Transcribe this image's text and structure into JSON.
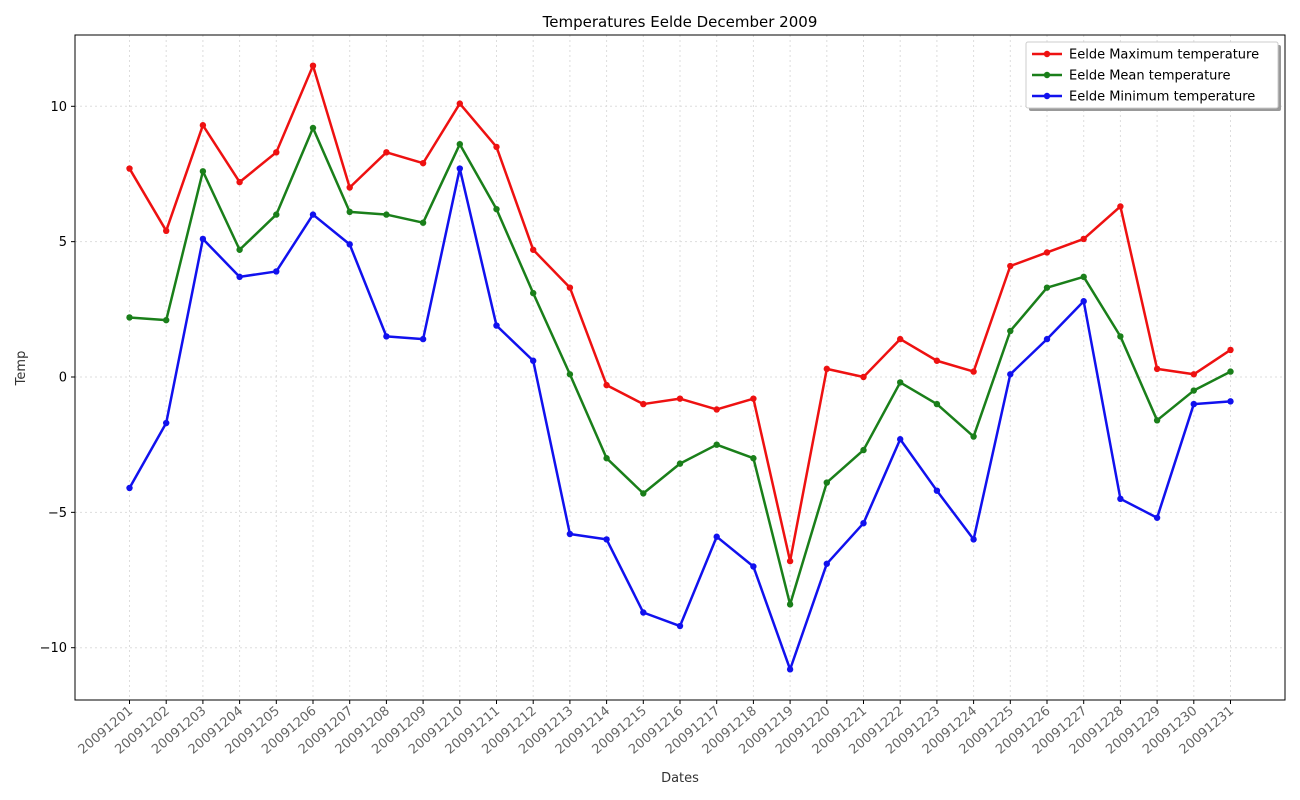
{
  "chart_data": {
    "type": "line",
    "title": "Temperatures Eelde December 2009",
    "xlabel": "Dates",
    "ylabel": "Temp",
    "ylim": [
      -12,
      12.5
    ],
    "yticks": [
      -10,
      -5,
      0,
      5,
      10
    ],
    "grid": true,
    "legend_position": "top-right",
    "categories": [
      "20091201",
      "20091202",
      "20091203",
      "20091204",
      "20091205",
      "20091206",
      "20091207",
      "20091208",
      "20091209",
      "20091210",
      "20091211",
      "20091212",
      "20091213",
      "20091214",
      "20091215",
      "20091216",
      "20091217",
      "20091218",
      "20091219",
      "20091220",
      "20091221",
      "20091222",
      "20091223",
      "20091224",
      "20091225",
      "20091226",
      "20091227",
      "20091228",
      "20091229",
      "20091230",
      "20091231"
    ],
    "series": [
      {
        "name": "Eelde Maximum temperature",
        "color": "#ee1111",
        "values": [
          7.7,
          5.4,
          9.3,
          7.2,
          8.3,
          11.5,
          7.0,
          8.3,
          7.9,
          10.1,
          8.5,
          4.7,
          3.3,
          -0.3,
          -1.0,
          -0.8,
          -1.2,
          -0.8,
          -6.8,
          0.3,
          0.0,
          1.4,
          0.6,
          0.2,
          4.1,
          4.6,
          5.1,
          6.3,
          0.3,
          0.1,
          1.0
        ]
      },
      {
        "name": "Eelde Mean temperature",
        "color": "#1a7f1a",
        "values": [
          2.2,
          2.1,
          7.6,
          4.7,
          6.0,
          9.2,
          6.1,
          6.0,
          5.7,
          8.6,
          6.2,
          3.1,
          0.1,
          -3.0,
          -4.3,
          -3.2,
          -2.5,
          -3.0,
          -8.4,
          -3.9,
          -2.7,
          -0.2,
          -1.0,
          -2.2,
          1.7,
          3.3,
          3.7,
          1.5,
          -1.6,
          -0.5,
          0.2
        ]
      },
      {
        "name": "Eelde Minimum temperature",
        "color": "#1111ee",
        "values": [
          -4.1,
          -1.7,
          5.1,
          3.7,
          3.9,
          6.0,
          4.9,
          1.5,
          1.4,
          7.7,
          1.9,
          0.6,
          -5.8,
          -6.0,
          -8.7,
          -9.2,
          -5.9,
          -7.0,
          -10.8,
          -6.9,
          -5.4,
          -2.3,
          -4.2,
          -6.0,
          0.1,
          1.4,
          2.8,
          -4.5,
          -5.2,
          -1.0,
          -0.9
        ]
      }
    ]
  }
}
